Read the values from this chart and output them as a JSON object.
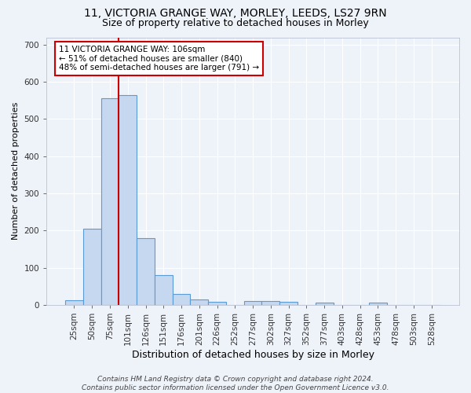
{
  "title1": "11, VICTORIA GRANGE WAY, MORLEY, LEEDS, LS27 9RN",
  "title2": "Size of property relative to detached houses in Morley",
  "xlabel": "Distribution of detached houses by size in Morley",
  "ylabel": "Number of detached properties",
  "footer": "Contains HM Land Registry data © Crown copyright and database right 2024.\nContains public sector information licensed under the Open Government Licence v3.0.",
  "bar_labels": [
    "25sqm",
    "50sqm",
    "75sqm",
    "101sqm",
    "126sqm",
    "151sqm",
    "176sqm",
    "201sqm",
    "226sqm",
    "252sqm",
    "277sqm",
    "302sqm",
    "327sqm",
    "352sqm",
    "377sqm",
    "403sqm",
    "428sqm",
    "453sqm",
    "478sqm",
    "503sqm",
    "528sqm"
  ],
  "bar_values": [
    13,
    205,
    555,
    565,
    180,
    80,
    30,
    15,
    8,
    0,
    10,
    10,
    8,
    0,
    5,
    0,
    0,
    6,
    0,
    0,
    0
  ],
  "bar_color": "#c5d8f0",
  "bar_edge_color": "#5b9bd5",
  "red_line_color": "#cc0000",
  "annotation_text": "11 VICTORIA GRANGE WAY: 106sqm\n← 51% of detached houses are smaller (840)\n48% of semi-detached houses are larger (791) →",
  "annotation_box_color": "#ffffff",
  "annotation_box_edge": "#cc0000",
  "ylim": [
    0,
    720
  ],
  "yticks": [
    0,
    100,
    200,
    300,
    400,
    500,
    600,
    700
  ],
  "bg_color": "#eef2f9",
  "grid_color": "#ffffff",
  "title1_fontsize": 10,
  "title2_fontsize": 9,
  "xlabel_fontsize": 9,
  "ylabel_fontsize": 8,
  "tick_fontsize": 7.5,
  "footer_fontsize": 6.5
}
